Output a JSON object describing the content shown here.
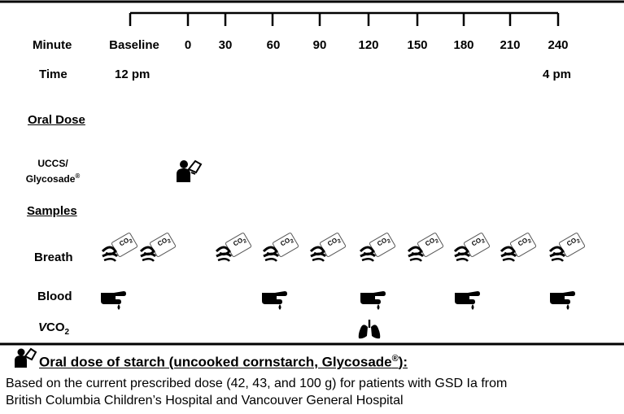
{
  "row_labels": {
    "minute": "Minute",
    "time": "Time",
    "oral_dose": "Oral Dose",
    "uccs_line1": "UCCS/",
    "uccs_line2": "Glycosade",
    "uccs_reg": "®",
    "samples": "Samples",
    "breath": "Breath",
    "blood": "Blood",
    "vco2_v": "V",
    "vco2_co": "CO",
    "vco2_sub": "2"
  },
  "minutes": [
    "Baseline",
    "0",
    "30",
    "60",
    "90",
    "120",
    "150",
    "180",
    "210",
    "240"
  ],
  "times": {
    "start": "12 pm",
    "end": "4 pm"
  },
  "icon_text": {
    "co2": "CO",
    "co2_sub": "2"
  },
  "icons": {
    "dose": "drinking-person-icon",
    "breath": "breath-bag-co2-icon",
    "blood": "finger-prick-blood-icon",
    "vco2": "lungs-icon"
  },
  "schedule": {
    "dose_at": [
      "0"
    ],
    "breath_at": [
      "Baseline (1)",
      "Baseline (2)",
      "30",
      "60",
      "90",
      "120",
      "150",
      "180",
      "210",
      "240"
    ],
    "blood_at": [
      "Baseline",
      "60",
      "120",
      "180",
      "240"
    ],
    "vco2_at": [
      "120"
    ]
  },
  "note": {
    "title": "Oral dose of starch (uncooked cornstarch, Glycosade",
    "title_reg": "®",
    "title_end": "):",
    "line1": "Based on the current prescribed dose (42, 43, and 100 g) for patients with GSD Ia from",
    "line2": "British Columbia Children’s Hospital and Vancouver General Hospital"
  }
}
